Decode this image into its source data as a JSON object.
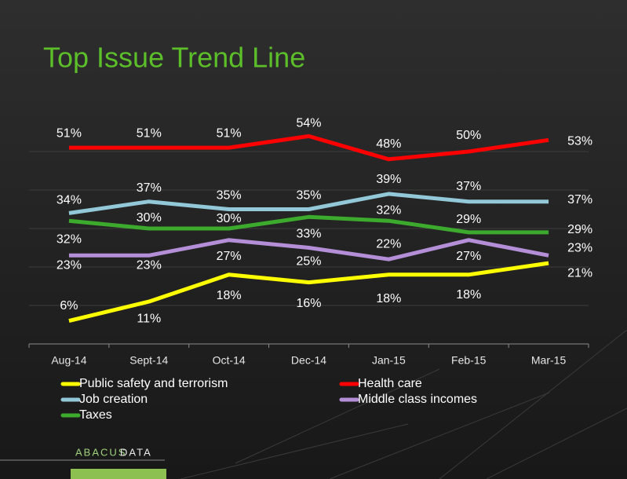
{
  "chart_data": {
    "type": "line",
    "title": "Top Issue Trend Line",
    "categories": [
      "Aug-14",
      "Sept-14",
      "Oct-14",
      "Dec-14",
      "Jan-15",
      "Feb-15",
      "Mar-15"
    ],
    "series": [
      {
        "name": "Public safety and terrorism",
        "color": "#ffff00",
        "values": [
          6,
          11,
          18,
          16,
          18,
          18,
          21
        ],
        "value_labels": [
          "6%",
          "11%",
          "18%",
          "16%",
          "18%",
          "18%",
          "21%"
        ]
      },
      {
        "name": "Health care",
        "color": "#ff0000",
        "values": [
          51,
          51,
          51,
          54,
          48,
          50,
          53
        ],
        "value_labels": [
          "51%",
          "51%",
          "51%",
          "54%",
          "48%",
          "50%",
          "53%"
        ]
      },
      {
        "name": "Job creation",
        "color": "#92c8d8",
        "values": [
          34,
          37,
          35,
          35,
          39,
          37,
          37
        ],
        "value_labels": [
          "34%",
          "37%",
          "35%",
          "35%",
          "39%",
          "37%",
          "37%"
        ]
      },
      {
        "name": "Middle class incomes",
        "color": "#b48fd8",
        "values": [
          23,
          23,
          27,
          25,
          22,
          27,
          23
        ],
        "value_labels": [
          "23%",
          "23%",
          "27%",
          "25%",
          "22%",
          "27%",
          "23%"
        ]
      },
      {
        "name": "Taxes",
        "color": "#3caa2c",
        "values": [
          32,
          30,
          30,
          33,
          32,
          29,
          29
        ],
        "value_labels": [
          "32%",
          "30%",
          "30%",
          "33%",
          "32%",
          "29%",
          "29%"
        ]
      }
    ],
    "ylim": [
      0,
      60
    ],
    "yticks": [
      10,
      20,
      30,
      40,
      50
    ],
    "grid": true
  },
  "logo": {
    "parts": [
      "ABACUS",
      "DATA"
    ]
  }
}
